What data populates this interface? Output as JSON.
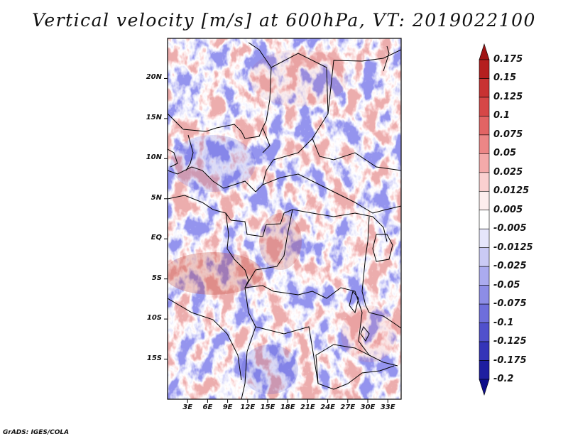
{
  "title": "Vertical velocity [m/s] at 600hPa, VT: 2019022100",
  "credit": "GrADS: IGES/COLA",
  "map": {
    "region": "Central Africa",
    "lon_range": [
      0,
      35
    ],
    "lat_range": [
      -20,
      25
    ],
    "lat_ticks": [
      "20N",
      "15N",
      "10N",
      "5N",
      "EQ",
      "5S",
      "10S",
      "15S"
    ],
    "lon_ticks": [
      "3E",
      "6E",
      "9E",
      "12E",
      "15E",
      "18E",
      "21E",
      "24E",
      "27E",
      "30E",
      "33E"
    ]
  },
  "colorbar": {
    "labels": [
      "0.175",
      "0.15",
      "0.125",
      "0.1",
      "0.075",
      "0.05",
      "0.025",
      "0.0125",
      "0.005",
      "-0.005",
      "-0.0125",
      "-0.025",
      "-0.05",
      "-0.075",
      "-0.1",
      "-0.125",
      "-0.175",
      "-0.2"
    ],
    "colors": [
      "#a01414",
      "#b51f1f",
      "#c83232",
      "#d64747",
      "#e26464",
      "#ec8686",
      "#f4aaaa",
      "#fad0d0",
      "#fdeeee",
      "#ffffff",
      "#e6e6fb",
      "#cacaf5",
      "#ababef",
      "#8d8de6",
      "#6e6edb",
      "#5050cc",
      "#3434b8",
      "#1e1ea0",
      "#0e0e8a"
    ]
  }
}
